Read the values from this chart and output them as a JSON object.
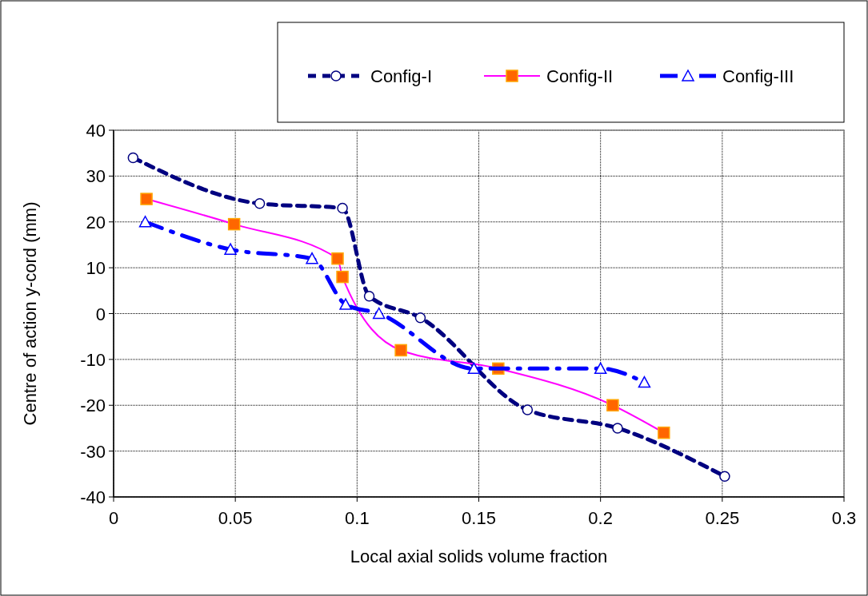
{
  "chart_data": {
    "type": "line",
    "xlabel": "Local axial solids volume fraction",
    "ylabel": "Centre of action y-cord (mm)",
    "xlim": [
      0,
      0.3
    ],
    "xticks": [
      0,
      0.05,
      0.1,
      0.15,
      0.2,
      0.25,
      0.3
    ],
    "ylim": [
      -40,
      40
    ],
    "yticks": [
      -40,
      -30,
      -20,
      -10,
      0,
      10,
      20,
      30,
      40
    ],
    "grid": true,
    "legend": "top",
    "series": [
      {
        "name": "Config-I",
        "color": "#000080",
        "marker": "circle",
        "line_style": "dashed",
        "x": [
          0.008,
          0.06,
          0.094,
          0.105,
          0.126,
          0.17,
          0.207,
          0.251
        ],
        "values": [
          34,
          24,
          23,
          3.8,
          -0.9,
          -21,
          -25,
          -35.5
        ]
      },
      {
        "name": "Config-II",
        "color": "#ff00ff",
        "colors": [
          "#ff6600",
          "#ff6600",
          "#ff6600",
          "#ff6600",
          "#ff6600",
          "#ff6600",
          "#ff6600",
          "#ff6600"
        ],
        "marker": "square",
        "line_style": "solid",
        "x": [
          0.0135,
          0.0495,
          0.092,
          0.094,
          0.118,
          0.158,
          0.205,
          0.226
        ],
        "values": [
          25,
          19.5,
          12,
          8,
          -8,
          -12,
          -20,
          -26
        ]
      },
      {
        "name": "Config-III",
        "color": "#0000ff",
        "marker": "triangle",
        "line_style": "dashed",
        "x": [
          0.013,
          0.048,
          0.0815,
          0.0953,
          0.109,
          0.148,
          0.2,
          0.218
        ],
        "values": [
          20,
          14,
          12,
          2,
          0,
          -12,
          -12,
          -15
        ]
      }
    ]
  }
}
